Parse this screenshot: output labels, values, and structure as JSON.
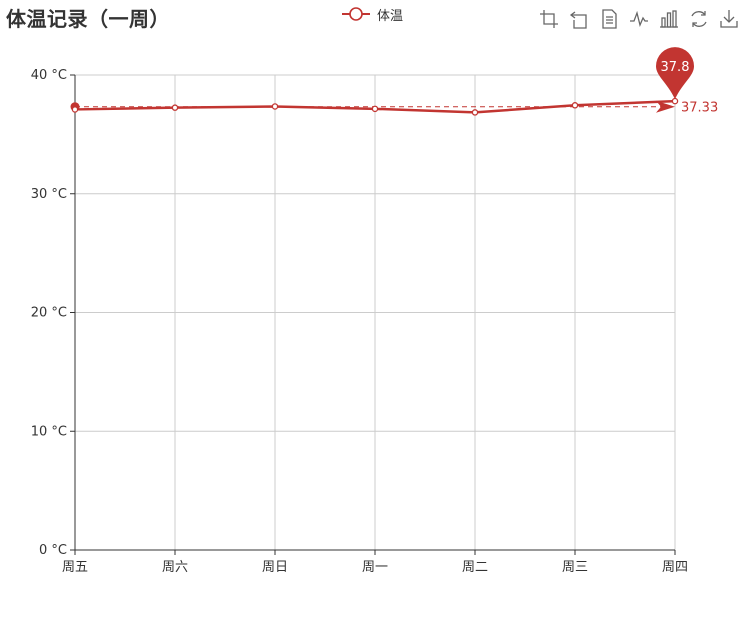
{
  "title": "体温记录（一周）",
  "legend": {
    "label": "体温",
    "color": "#c23531"
  },
  "toolbox": [
    {
      "name": "zoom-icon"
    },
    {
      "name": "zoom-reset-icon"
    },
    {
      "name": "data-view-icon"
    },
    {
      "name": "line-chart-icon"
    },
    {
      "name": "bar-chart-icon"
    },
    {
      "name": "restore-icon"
    },
    {
      "name": "download-icon"
    }
  ],
  "chart_data": {
    "type": "line",
    "categories": [
      "周五",
      "周六",
      "周日",
      "周一",
      "周二",
      "周三",
      "周四"
    ],
    "series": [
      {
        "name": "体温",
        "values": [
          37.1,
          37.25,
          37.35,
          37.15,
          36.85,
          37.45,
          37.8
        ],
        "color": "#c23531"
      }
    ],
    "y_tick_labels": [
      "0 °C",
      "10 °C",
      "20 °C",
      "30 °C",
      "40 °C"
    ],
    "ylim": [
      0,
      40
    ],
    "grid": true,
    "mark_point": {
      "label": "37.8",
      "value": 37.8,
      "category": "周四"
    },
    "mark_line": {
      "label": "37.33",
      "value": 37.33
    }
  }
}
